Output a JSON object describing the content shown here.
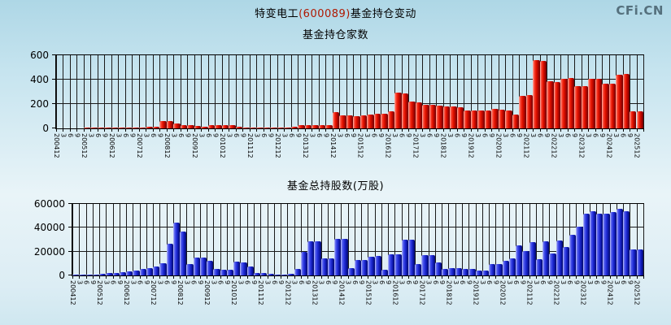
{
  "header": {
    "stock_name": "特变电工",
    "stock_code": "(600089)",
    "title_rest": "基金持仓变动",
    "logo_text": "CFi.CN"
  },
  "chart_data": [
    {
      "type": "bar",
      "title": "基金持仓家数",
      "series_name": "基金持仓家数",
      "bar_accent_color": "#e81400",
      "ylim": [
        0,
        600
      ],
      "y_ticks": [
        "0",
        "200",
        "400",
        "600"
      ],
      "grid": "on",
      "legend": "none",
      "categories": [
        "200412",
        "3",
        "6",
        "9",
        "200512",
        "3",
        "6",
        "9",
        "200612",
        "3",
        "6",
        "9",
        "200712",
        "3",
        "6",
        "9",
        "200812",
        "3",
        "6",
        "9",
        "200912",
        "3",
        "6",
        "9",
        "201012",
        "3",
        "6",
        "9",
        "201112",
        "3",
        "6",
        "9",
        "201212",
        "3",
        "6",
        "9",
        "201312",
        "3",
        "6",
        "9",
        "201412",
        "3",
        "6",
        "9",
        "201512",
        "3",
        "6",
        "9",
        "201612",
        "3",
        "6",
        "9",
        "201712",
        "3",
        "6",
        "9",
        "201812",
        "3",
        "6",
        "9",
        "201912",
        "3",
        "6",
        "9",
        "202012",
        "3",
        "6",
        "9",
        "202112",
        "3",
        "6",
        "9",
        "202212",
        "3",
        "6",
        "9",
        "202312",
        "3",
        "6",
        "9",
        "202412",
        "3",
        "6",
        "9",
        "202512"
      ],
      "values": [
        3,
        3,
        3,
        3,
        4,
        4,
        4,
        5,
        5,
        5,
        6,
        6,
        8,
        12,
        15,
        60,
        62,
        42,
        26,
        24,
        22,
        16,
        24,
        25,
        26,
        24,
        14,
        10,
        10,
        8,
        6,
        6,
        6,
        8,
        12,
        25,
        28,
        30,
        26,
        30,
        135,
        105,
        108,
        100,
        105,
        115,
        118,
        118,
        143,
        295,
        290,
        220,
        215,
        195,
        192,
        185,
        180,
        180,
        175,
        150,
        145,
        145,
        150,
        157,
        155,
        150,
        115,
        270,
        272,
        560,
        555,
        385,
        383,
        410,
        412,
        345,
        348,
        405,
        408,
        365,
        368,
        443,
        445,
        140,
        138
      ]
    },
    {
      "type": "bar",
      "title": "基金总持股数(万股)",
      "series_name": "基金总持股数(万股)",
      "bar_accent_color": "#2531dd",
      "ylim": [
        0,
        60000
      ],
      "y_ticks": [
        "0",
        "20000",
        "40000",
        "60000"
      ],
      "grid": "on",
      "legend": "none",
      "categories": [
        "200412",
        "3",
        "6",
        "9",
        "200512",
        "3",
        "6",
        "9",
        "200612",
        "3",
        "6",
        "9",
        "200712",
        "3",
        "6",
        "9",
        "200812",
        "3",
        "6",
        "9",
        "200912",
        "3",
        "6",
        "9",
        "201012",
        "3",
        "6",
        "9",
        "201112",
        "3",
        "6",
        "9",
        "201212",
        "3",
        "6",
        "9",
        "201312",
        "3",
        "6",
        "9",
        "201412",
        "3",
        "6",
        "9",
        "201512",
        "3",
        "6",
        "9",
        "201612",
        "3",
        "6",
        "9",
        "201712",
        "3",
        "6",
        "9",
        "201812",
        "3",
        "6",
        "9",
        "201912",
        "3",
        "6",
        "9",
        "202012",
        "3",
        "6",
        "9",
        "202112",
        "3",
        "6",
        "9",
        "202212",
        "3",
        "6",
        "9",
        "202312",
        "3",
        "6",
        "9",
        "202412",
        "3",
        "6",
        "9",
        "202512"
      ],
      "values": [
        900,
        700,
        800,
        1000,
        1400,
        1800,
        2300,
        2800,
        3400,
        4300,
        5300,
        6300,
        7600,
        10000,
        26500,
        44000,
        36500,
        9800,
        15300,
        14800,
        12400,
        5200,
        4800,
        5000,
        11300,
        11000,
        7500,
        2200,
        2000,
        1300,
        1000,
        900,
        1100,
        5700,
        19600,
        28700,
        28500,
        14200,
        14000,
        30500,
        30700,
        6400,
        13000,
        13200,
        16000,
        16200,
        5000,
        17500,
        17800,
        30000,
        30300,
        9700,
        16900,
        17000,
        10900,
        5500,
        6200,
        6000,
        5200,
        5600,
        4200,
        4000,
        9700,
        9500,
        12000,
        14600,
        25000,
        20500,
        28000,
        13500,
        28700,
        18600,
        29500,
        24000,
        34000,
        41000,
        52000,
        54000,
        52000,
        51500,
        53000,
        56000,
        54000,
        22000,
        21500
      ]
    }
  ]
}
